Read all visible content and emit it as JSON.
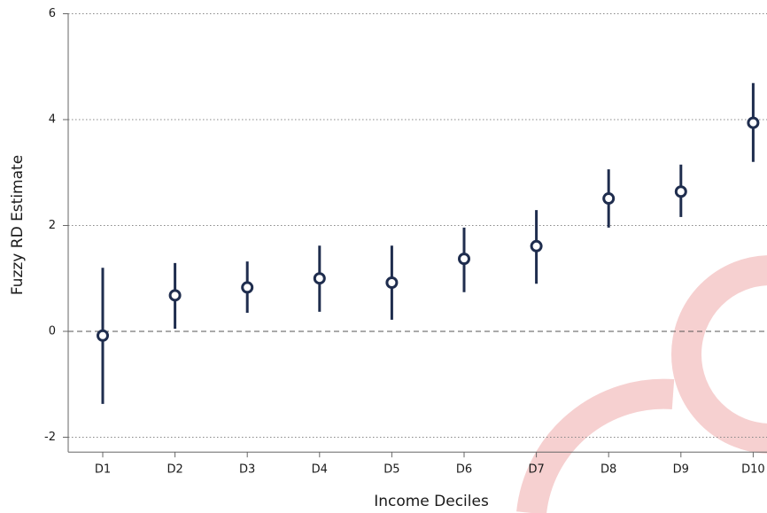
{
  "chart_data": {
    "type": "errorbar",
    "x_label": "Income Deciles",
    "y_label": "Fuzzy RD Estimate",
    "categories": [
      "D1",
      "D2",
      "D3",
      "D4",
      "D5",
      "D6",
      "D7",
      "D8",
      "D9",
      "D10"
    ],
    "series": [
      {
        "color": "#1f2d4e",
        "values": [
          -0.08,
          0.68,
          0.83,
          1.0,
          0.92,
          1.37,
          1.61,
          2.51,
          2.64,
          3.94
        ],
        "lower": [
          -1.37,
          0.05,
          0.35,
          0.37,
          0.22,
          0.74,
          0.9,
          1.96,
          2.16,
          3.2
        ],
        "upper": [
          1.2,
          1.29,
          1.32,
          1.62,
          1.62,
          1.96,
          2.29,
          3.06,
          3.15,
          4.69
        ]
      }
    ],
    "ylim": [
      -2.28,
      6
    ],
    "yticks": [
      -2,
      0,
      2,
      4,
      6
    ],
    "grid": true,
    "zero_line": true
  }
}
